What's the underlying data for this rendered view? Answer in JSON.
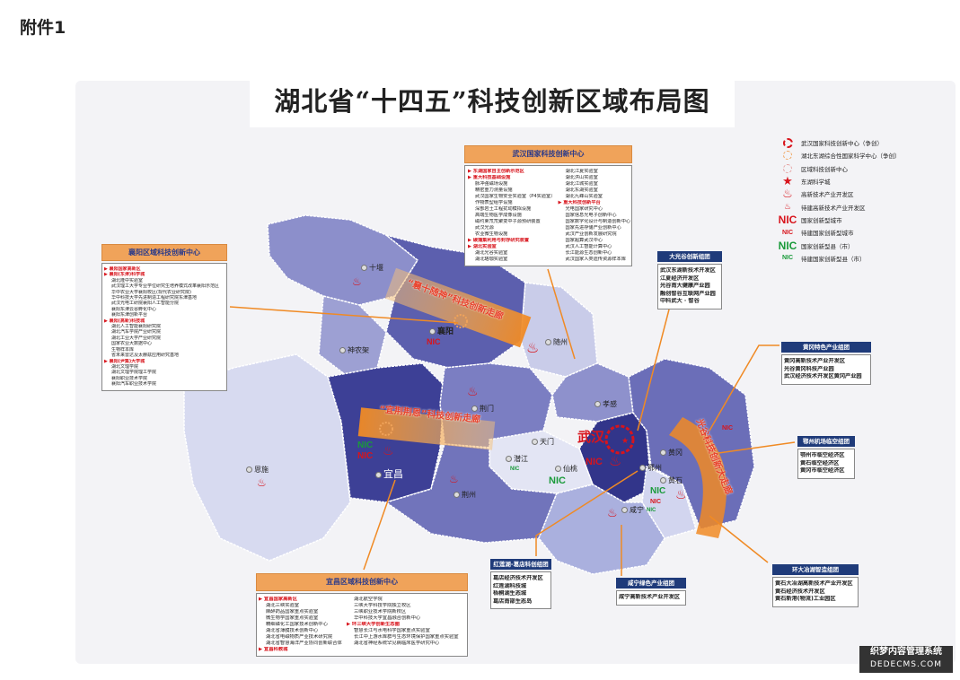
{
  "attachment_label": "附件1",
  "title": "湖北省“十四五”科技创新区域布局图",
  "colors": {
    "header_orange": "#f0a35a",
    "header_blue": "#1f3b7a",
    "accent_red": "#d8141c",
    "nic_green": "#1a9a3a",
    "arrow_orange": "#f08a24"
  },
  "legend": [
    {
      "icon": "dashed-red-circle-icon",
      "label": "武汉国家科技创新中心（争创）"
    },
    {
      "icon": "dashed-orange-circle-icon",
      "label": "湖北东湖综合性国家科学中心（争创）"
    },
    {
      "icon": "dashed-pink-circle-icon",
      "label": "区域科技创新中心"
    },
    {
      "icon": "red-star-icon",
      "label": "东湖科学城"
    },
    {
      "icon": "large-torch-icon",
      "label": "高新技术产业开发区"
    },
    {
      "icon": "small-torch-icon",
      "label": "待建高新技术产业开发区"
    },
    {
      "icon": "nic-red-large",
      "label": "国家创新型城市",
      "mark": "NIC"
    },
    {
      "icon": "nic-red-small",
      "label": "待建国家创新型城市",
      "mark": "NIC"
    },
    {
      "icon": "nic-green-large",
      "label": "国家创新型县（市）",
      "mark": "NIC"
    },
    {
      "icon": "nic-green-small",
      "label": "待建国家创新型县（市）",
      "mark": "NIC"
    }
  ],
  "wuhan_center": {
    "title": "武汉国家科技创新中心",
    "left": [
      {
        "t": "东湖国家自主创新示范区",
        "h": true
      },
      {
        "t": "重大科技基础设施",
        "h": true
      },
      {
        "t": "脉冲强磁场设施"
      },
      {
        "t": "精密重力测量设施"
      },
      {
        "t": "武汉国家生物安全实验室（P4实验室）"
      },
      {
        "t": "作物表型组学设施"
      },
      {
        "t": "深部岩土工程扰动模拟设施"
      },
      {
        "t": "高端生物医学成像设施"
      },
      {
        "t": "磁约束氘氘聚变中子源预研装置"
      },
      {
        "t": "武汉光源"
      },
      {
        "t": "农业微生物设施"
      },
      {
        "t": "碳捕集利用与封存研究装置",
        "h": true
      },
      {
        "t": "湖北实验室",
        "h": true
      },
      {
        "t": "湖北光谷实验室"
      },
      {
        "t": "湖北珞珈实验室"
      }
    ],
    "right": [
      {
        "t": "湖北江夏实验室"
      },
      {
        "t": "湖北洪山实验室"
      },
      {
        "t": "湖北江城实验室"
      },
      {
        "t": "湖北东湖实验室"
      },
      {
        "t": "湖北九峰山实验室"
      },
      {
        "t": "重大科技创新平台",
        "h": true
      },
      {
        "t": "光电国家研究中心"
      },
      {
        "t": "国家信息光电子创新中心"
      },
      {
        "t": "国家数字化设计与制造创新中心"
      },
      {
        "t": "国家先进存储产业创新中心"
      },
      {
        "t": "武汉产业创新发展研究院"
      },
      {
        "t": "国家超算武汉中心"
      },
      {
        "t": "武汉人工智能计算中心"
      },
      {
        "t": "长江能源生态创新中心"
      },
      {
        "t": "武汉国家人类遗传资源样本库"
      }
    ]
  },
  "xiangyang_center": {
    "title": "襄阳区域科技创新中心",
    "items": [
      {
        "t": "襄阳国家高新区",
        "h": true
      },
      {
        "t": "襄阳(东津)科学城",
        "h": true
      },
      {
        "t": "湖北隆中实验室"
      },
      {
        "t": "武汉理工大学专业学位研究生培养模式改革襄阳示范区"
      },
      {
        "t": "华中农业大学襄阳校区(现代农业研究院)"
      },
      {
        "t": "华中科技大学先进制造工程研究院东津基地"
      },
      {
        "t": "武汉光电工研院襄阳人工智能分院"
      },
      {
        "t": "襄阳东津云谷孵化中心"
      },
      {
        "t": "襄阳东津创新平台"
      },
      {
        "t": "襄阳(高新)科技城",
        "h": true
      },
      {
        "t": "湖北人工智能襄阳研究院"
      },
      {
        "t": "湖北汽车学院产业研究院"
      },
      {
        "t": "湖北工业大学产业研究院"
      },
      {
        "t": "国家农业大数据中心"
      },
      {
        "t": "生物样本库"
      },
      {
        "t": "省未来雷达及太赫兹应用研究基地"
      },
      {
        "t": "襄阳(尹集)大学城",
        "h": true
      },
      {
        "t": "湖北文理学院"
      },
      {
        "t": "湖北文理学院理工学院"
      },
      {
        "t": "襄阳职业技术学院"
      },
      {
        "t": "襄阳汽车职业技术学院"
      }
    ]
  },
  "yichang_center": {
    "title": "宜昌区域科技创新中心",
    "left": [
      {
        "t": "宜昌国家高新区",
        "h": true
      },
      {
        "t": "湖北三峡实验室"
      },
      {
        "t": "麻醉药品国家重点实验室"
      },
      {
        "t": "微生物学国家重点实验室"
      },
      {
        "t": "精细磷化工国家技术创新中心"
      },
      {
        "t": "湖北省薄膜技术创新中心"
      },
      {
        "t": "湖北省电磁物质产业技术研究院"
      },
      {
        "t": "湖北省智慧海洋产业协同创新联合体"
      },
      {
        "t": "宜昌科教城",
        "h": true
      }
    ],
    "right": [
      {
        "t": "湖北航空学院"
      },
      {
        "t": "三峡大学科技学院独立校区"
      },
      {
        "t": "三峡职业技术学院新校区"
      },
      {
        "t": "华中科技大学宜昌融合创新中心"
      },
      {
        "t": "环三峡大学创新生态圈",
        "h": true
      },
      {
        "t": "智慧长江与水电科学国家重点实验室"
      },
      {
        "t": "长江中上游水库群与生态环境保护国家重点实验室"
      },
      {
        "t": "湖北省神经系统罕见病临床医学研究中心"
      }
    ]
  },
  "clusters": {
    "guanggu": {
      "title": "大光谷创新组团",
      "items": [
        "武汉东湖新技术开发区",
        "江夏经济开发区",
        "光谷南大健康产业园",
        "融创智谷互联网产业园",
        "中科武大 · 智谷"
      ]
    },
    "huanggang": {
      "title": "黄冈特色产业组团",
      "items": [
        "黄冈高新技术产业开发区",
        "光谷黄冈科技产业园",
        "武汉经济技术开发区黄冈产业园"
      ]
    },
    "ezhou": {
      "title": "鄂州机场临空组团",
      "items": [
        "鄂州市临空经济区",
        "黄石临空经济区",
        "黄冈市临空经济区"
      ]
    },
    "honglianhu": {
      "title": "红莲湖-葛店科创组团",
      "items": [
        "葛店经济技术开发区",
        "红莲湖科技城",
        "梧桐湖生态城",
        "葛店南部生态岛"
      ]
    },
    "xianning": {
      "title": "咸宁绿色产业组团",
      "items": [
        "咸宁高新技术产业开发区"
      ]
    },
    "daye": {
      "title": "环大冶湖智造组团",
      "items": [
        "黄石大冶湖高新技术产业开发区",
        "黄石经济技术开发区",
        "黄石新港(物流)工业园区"
      ]
    }
  },
  "map": {
    "cities": [
      "十堰",
      "襄阳",
      "随州",
      "神农架",
      "荆门",
      "孝感",
      "恩施",
      "宜昌",
      "天门",
      "潜江",
      "仙桃",
      "荆州",
      "武汉",
      "鄂州",
      "黄冈",
      "黄石",
      "咸宁"
    ],
    "corridors": [
      "“襄十随神”科技创新走廊",
      "“宜荆荆恩”科技创新走廊",
      "光谷科技创新大走廊"
    ],
    "nic": "NIC"
  },
  "watermark": {
    "line1": "织梦内容管理系统",
    "line2": "DEDECMS.COM"
  }
}
